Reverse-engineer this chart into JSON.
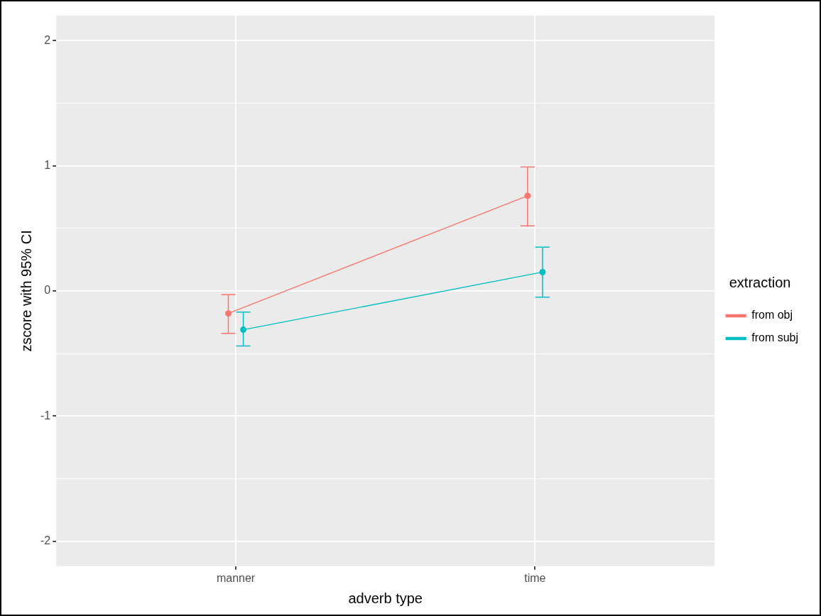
{
  "chart_data": {
    "type": "line",
    "xlabel": "adverb type",
    "ylabel": "zscore with 95% CI",
    "legend_title": "extraction",
    "categories": [
      "manner",
      "time"
    ],
    "series": [
      {
        "name": "from obj",
        "color": "#f8766d",
        "values": [
          -0.18,
          0.76
        ],
        "errors": [
          [
            -0.34,
            -0.03
          ],
          [
            0.52,
            0.99
          ]
        ]
      },
      {
        "name": "from subj",
        "color": "#00bfc4",
        "values": [
          -0.31,
          0.15
        ],
        "errors": [
          [
            -0.44,
            -0.17
          ],
          [
            -0.05,
            0.35
          ]
        ]
      }
    ],
    "ylim": [
      -2.2,
      2.2
    ],
    "yticks": [
      -2,
      {
        "value": -1.5,
        "label": null
      },
      -1,
      {
        "value": -0.5,
        "label": null
      },
      0,
      {
        "value": 0.5,
        "label": null
      },
      1,
      {
        "value": 1.5,
        "label": null
      },
      2
    ],
    "grid": true,
    "legend": "right",
    "marker": "circle",
    "line_style": "solid"
  }
}
